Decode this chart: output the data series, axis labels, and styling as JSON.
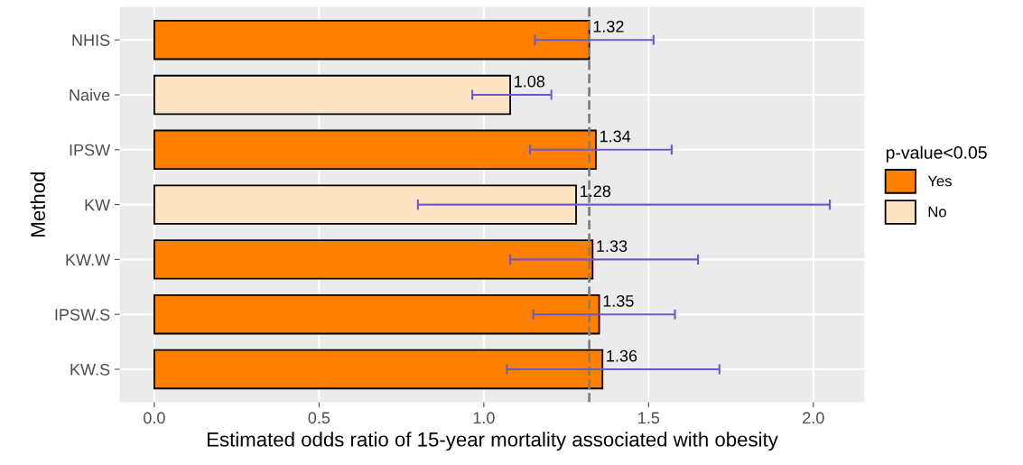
{
  "chart_data": {
    "type": "bar",
    "orientation": "horizontal",
    "categories": [
      "NHIS",
      "Naive",
      "IPSW",
      "KW",
      "KW.W",
      "IPSW.S",
      "KW.S"
    ],
    "series": [
      {
        "name": "Yes",
        "color": "#ff8000",
        "values": [
          1.32,
          null,
          1.34,
          null,
          1.33,
          1.35,
          1.36
        ],
        "errors": [
          [
            1.155,
            1.515
          ],
          null,
          [
            1.14,
            1.57
          ],
          null,
          [
            1.08,
            1.65
          ],
          [
            1.15,
            1.58
          ],
          [
            1.07,
            1.715
          ]
        ]
      },
      {
        "name": "No",
        "color": "#ffe4c4",
        "values": [
          null,
          1.08,
          null,
          1.28,
          null,
          null,
          null
        ],
        "errors": [
          null,
          [
            0.965,
            1.205
          ],
          null,
          [
            0.8,
            2.05
          ],
          null,
          null,
          null
        ]
      }
    ],
    "xlim": [
      -0.105,
      2.155
    ],
    "xticks": [
      {
        "value": 0,
        "label": "0.0"
      },
      0.5,
      {
        "value": 1,
        "label": "1.0"
      },
      1.5,
      {
        "value": 2,
        "label": "2.0"
      }
    ],
    "xlabel": "Estimated odds ratio of 15-year mortality associated with obesity",
    "ylabel": "Method",
    "legend_title": "p-value<0.05",
    "legend": "right",
    "grid": true,
    "data_labels": true,
    "ref_lines": [
      {
        "axis": "x",
        "value": 1.32,
        "color": "#808080",
        "line_style": "dashed"
      }
    ]
  }
}
